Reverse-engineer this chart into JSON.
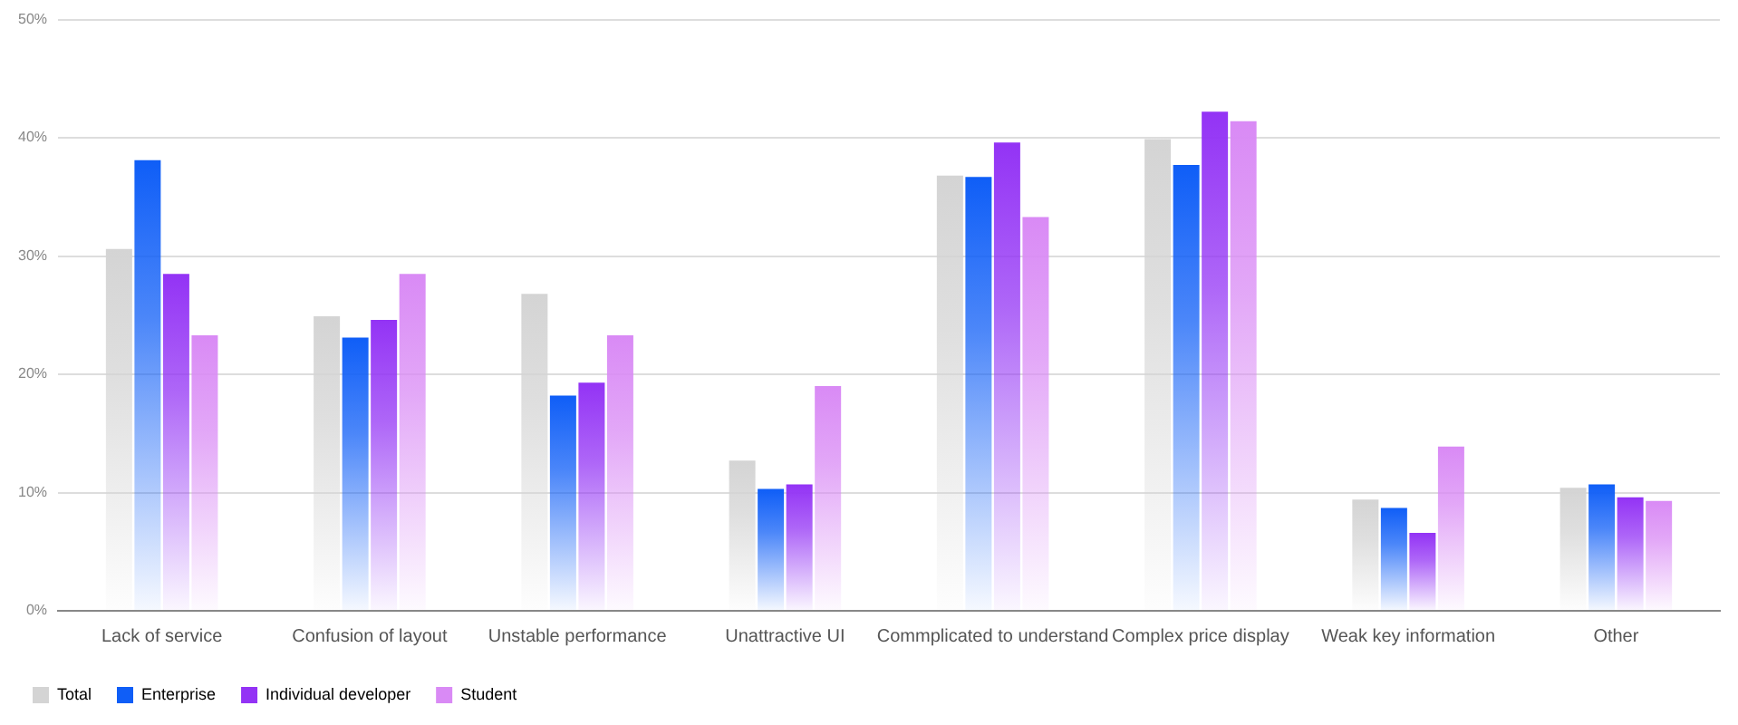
{
  "chart_data": {
    "type": "bar",
    "categories": [
      "Lack of service",
      "Confusion of layout",
      "Unstable performance",
      "Unattractive UI",
      "Commplicated to understand",
      "Complex price display",
      "Weak key information",
      "Other"
    ],
    "series": [
      {
        "name": "Total",
        "color": "#d4d4d4",
        "values": [
          30.6,
          24.9,
          26.8,
          12.7,
          36.8,
          39.9,
          9.4,
          10.4
        ]
      },
      {
        "name": "Enterprise",
        "color": "#0f5ef7",
        "values": [
          38.1,
          23.1,
          18.2,
          10.3,
          36.7,
          37.7,
          8.7,
          10.7
        ]
      },
      {
        "name": "Individual developer",
        "color": "#9333f5",
        "values": [
          28.5,
          24.6,
          19.3,
          10.7,
          39.6,
          42.2,
          6.6,
          9.6
        ]
      },
      {
        "name": "Student",
        "color": "#d98af5",
        "values": [
          23.3,
          28.5,
          23.3,
          19.0,
          33.3,
          41.4,
          13.9,
          9.3
        ]
      }
    ],
    "ylim": [
      0,
      50
    ],
    "yticks": [
      {
        "value": 0,
        "label": "0%"
      },
      {
        "value": 10,
        "label": "10%"
      },
      {
        "value": 20,
        "label": "20%"
      },
      {
        "value": 30,
        "label": "30%"
      },
      {
        "value": 40,
        "label": "40%"
      },
      {
        "value": 50,
        "label": "50%"
      }
    ],
    "grid": "y",
    "legend": "bottom left"
  }
}
